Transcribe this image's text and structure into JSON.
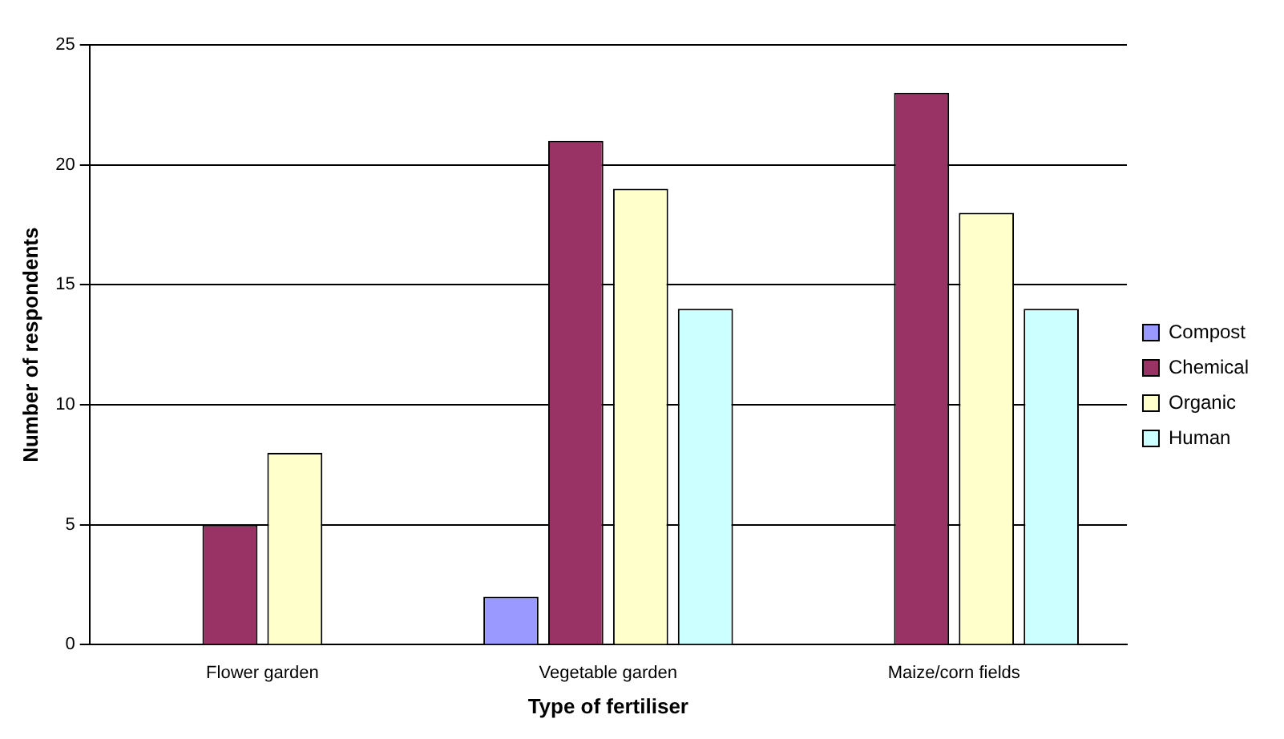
{
  "chart_data": {
    "type": "bar",
    "xlabel": "Type of fertiliser",
    "ylabel": "Number of respondents",
    "categories": [
      "Flower garden",
      "Vegetable garden",
      "Maize/corn fields"
    ],
    "series": [
      {
        "name": "Compost",
        "color": "#9999ff",
        "values": [
          0,
          2,
          0
        ]
      },
      {
        "name": "Chemical",
        "color": "#993366",
        "values": [
          5,
          21,
          23
        ]
      },
      {
        "name": "Organic",
        "color": "#ffffcc",
        "values": [
          8,
          19,
          18
        ]
      },
      {
        "name": "Human",
        "color": "#ccffff",
        "values": [
          0,
          14,
          14
        ]
      }
    ],
    "ylim": [
      0,
      25
    ],
    "yticks": [
      0,
      5,
      10,
      15,
      20,
      25
    ],
    "grid": "y",
    "legend": "right"
  }
}
